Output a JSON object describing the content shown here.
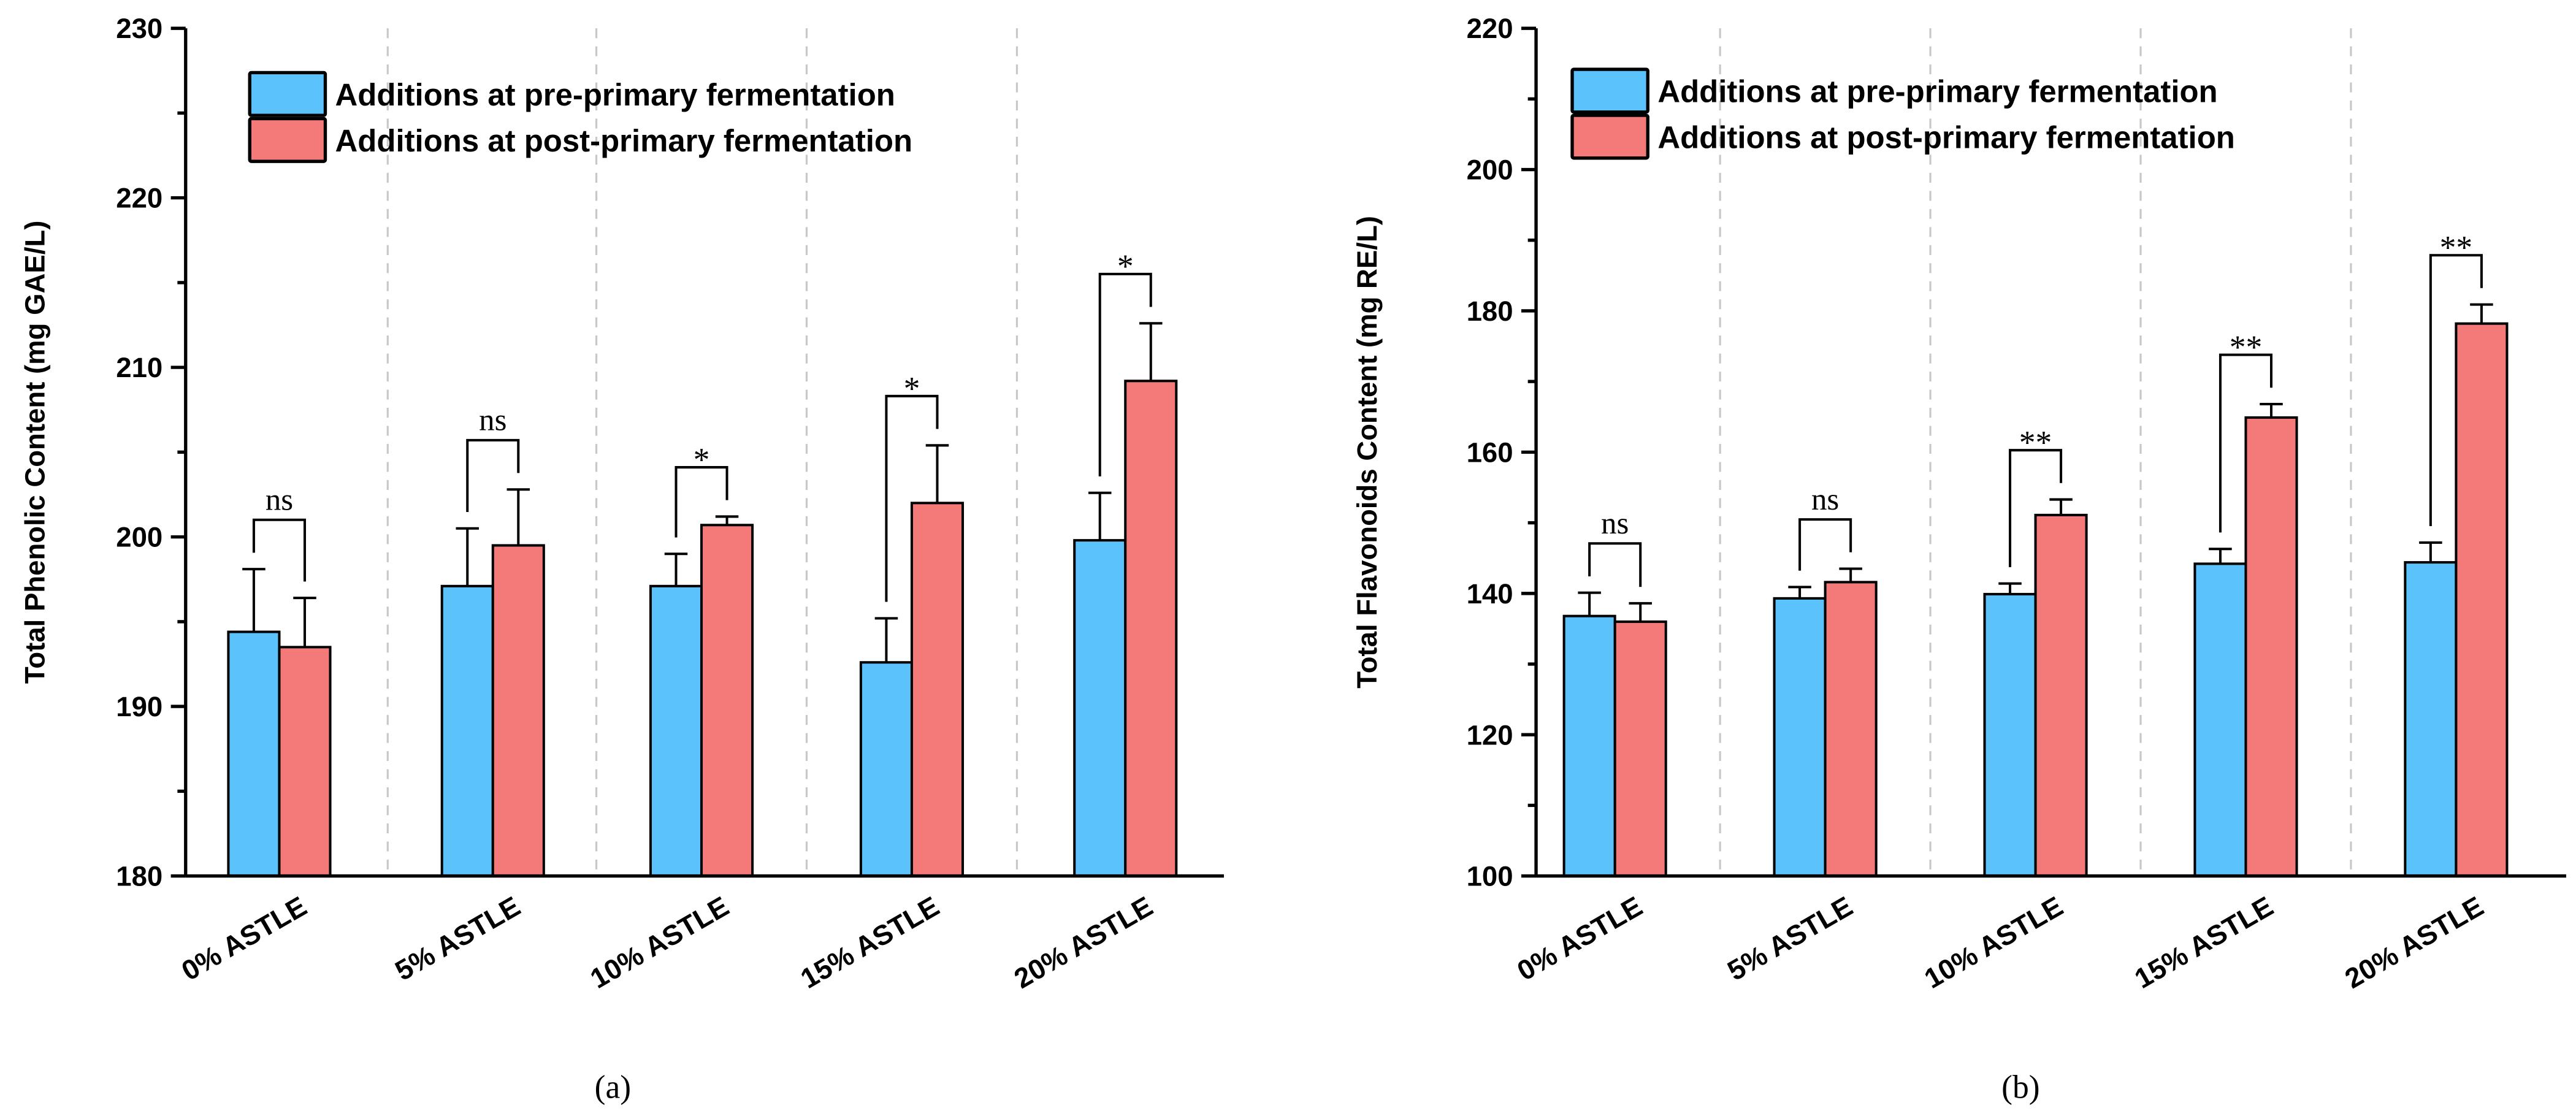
{
  "colors": {
    "pre": "#5BC2FC",
    "post": "#F47A7A",
    "grid": "#c8c8c8"
  },
  "chart_data": [
    {
      "type": "bar",
      "panel_label": "(a)",
      "ylabel": "Total Phenolic Content (mg GAE/L)",
      "xlabel": "",
      "ylim": [
        180,
        230
      ],
      "yticks": [
        "180",
        "190",
        "200",
        "210",
        "220",
        "230"
      ],
      "categories": [
        "0% ASTLE",
        "5% ASTLE",
        "10% ASTLE",
        "15% ASTLE",
        "20% ASTLE"
      ],
      "legend_position": "top-left",
      "series": [
        {
          "name": "Additions at pre-primary fermentation",
          "values": [
            194.4,
            197.1,
            197.1,
            192.6,
            199.8
          ],
          "errors": [
            3.7,
            3.4,
            1.9,
            2.6,
            2.8
          ]
        },
        {
          "name": "Additions at post-primary fermentation",
          "values": [
            193.5,
            199.5,
            200.7,
            202.0,
            209.2
          ],
          "errors": [
            2.9,
            3.3,
            0.5,
            3.4,
            3.4
          ]
        }
      ],
      "significance": [
        "ns",
        "ns",
        "*",
        "*",
        "*"
      ]
    },
    {
      "type": "bar",
      "panel_label": "(b)",
      "ylabel": "Total  Flavonoids  Content (mg RE/L)",
      "xlabel": "",
      "ylim": [
        100,
        220
      ],
      "yticks": [
        "100",
        "120",
        "140",
        "160",
        "180",
        "200",
        "220"
      ],
      "categories": [
        "0% ASTLE",
        "5% ASTLE",
        "10% ASTLE",
        "15% ASTLE",
        "20% ASTLE"
      ],
      "legend_position": "top-left",
      "series": [
        {
          "name": "Additions at pre-primary fermentation",
          "values": [
            136.8,
            139.3,
            139.9,
            144.2,
            144.4
          ],
          "errors": [
            3.3,
            1.6,
            1.5,
            2.1,
            2.8
          ]
        },
        {
          "name": "Additions at post-primary fermentation",
          "values": [
            136.0,
            141.6,
            151.1,
            164.9,
            178.2
          ],
          "errors": [
            2.6,
            1.9,
            2.2,
            1.9,
            2.7
          ]
        }
      ],
      "significance": [
        "ns",
        "ns",
        "**",
        "**",
        "**"
      ]
    }
  ]
}
